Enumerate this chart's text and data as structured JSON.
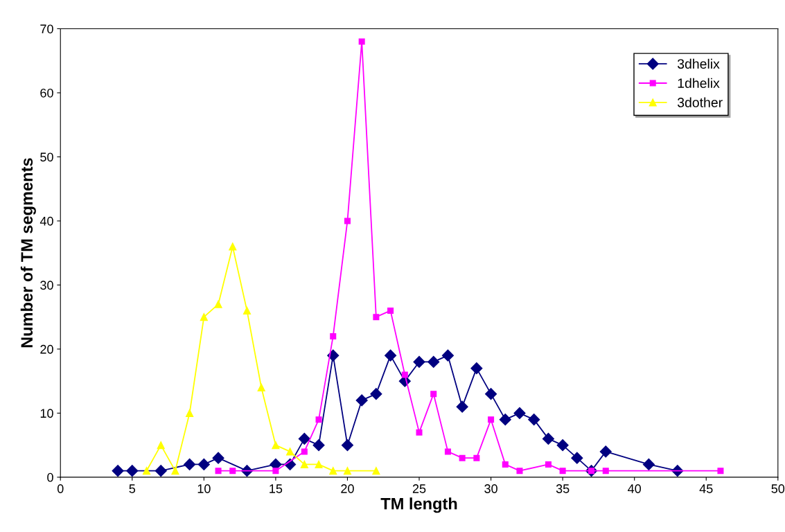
{
  "chart_data": {
    "type": "line",
    "xlabel": "TM length",
    "ylabel": "Number of TM segments",
    "xlim": [
      0,
      50
    ],
    "xticks": [
      0,
      5,
      10,
      15,
      20,
      25,
      30,
      35,
      40,
      45,
      50
    ],
    "ylim": [
      0,
      70
    ],
    "yticks": [
      0,
      10,
      20,
      30,
      40,
      50,
      60,
      70
    ],
    "grid": false,
    "legend": "top right",
    "series": [
      {
        "name": "3dhelix",
        "color": "#000080",
        "marker": "diamond",
        "x": [
          4,
          5,
          7,
          9,
          10,
          11,
          13,
          15,
          16,
          17,
          18,
          19,
          20,
          21,
          22,
          23,
          24,
          25,
          26,
          27,
          28,
          29,
          30,
          31,
          32,
          33,
          34,
          35,
          36,
          37,
          38,
          41,
          43
        ],
        "values": [
          1,
          1,
          1,
          2,
          2,
          3,
          1,
          2,
          2,
          6,
          5,
          19,
          5,
          12,
          13,
          19,
          15,
          18,
          18,
          19,
          11,
          17,
          13,
          9,
          10,
          9,
          6,
          5,
          3,
          1,
          4,
          2,
          1
        ]
      },
      {
        "name": "1dhelix",
        "color": "#ff00ff",
        "marker": "square",
        "x": [
          11,
          12,
          15,
          17,
          18,
          19,
          20,
          21,
          22,
          23,
          24,
          25,
          26,
          27,
          28,
          29,
          30,
          31,
          32,
          34,
          35,
          37,
          38,
          46
        ],
        "values": [
          1,
          1,
          1,
          4,
          9,
          22,
          40,
          68,
          25,
          26,
          16,
          7,
          13,
          4,
          3,
          3,
          9,
          2,
          1,
          2,
          1,
          1,
          1,
          1
        ]
      },
      {
        "name": "3dother",
        "color": "#ffff00",
        "marker": "triangle",
        "x": [
          6,
          7,
          8,
          9,
          10,
          11,
          12,
          13,
          14,
          15,
          16,
          17,
          18,
          19,
          20,
          22
        ],
        "values": [
          1,
          5,
          1,
          10,
          25,
          27,
          36,
          26,
          14,
          5,
          4,
          2,
          2,
          1,
          1,
          1
        ]
      }
    ]
  }
}
